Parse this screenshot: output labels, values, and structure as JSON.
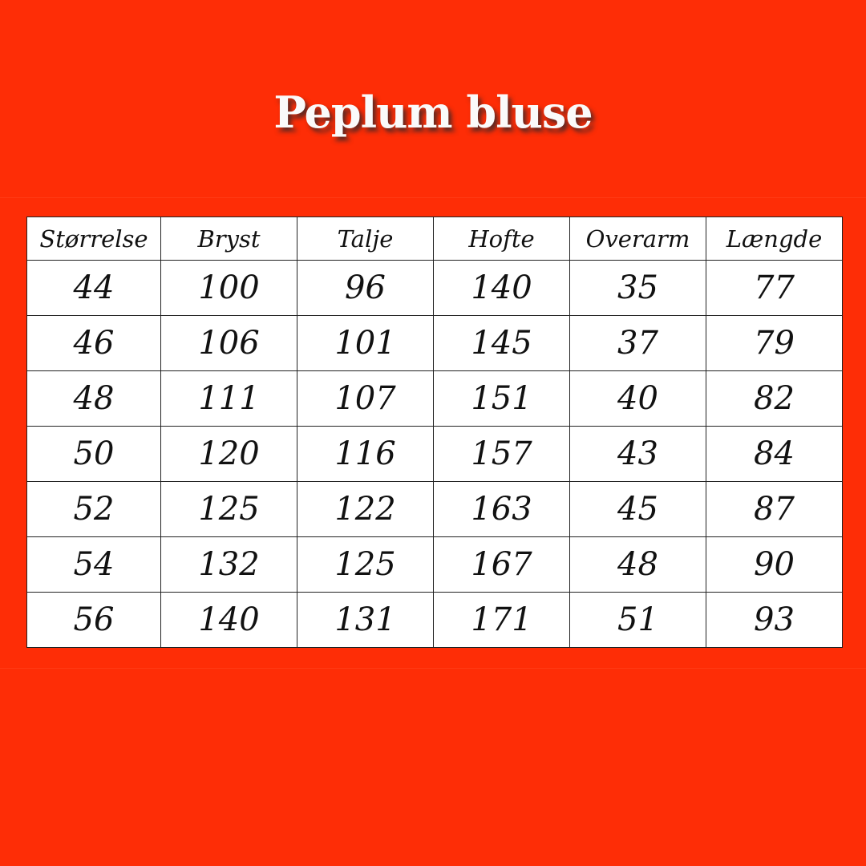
{
  "title": "Peplum bluse",
  "colors": {
    "background": "#fe2d06",
    "table": "#ffffff"
  },
  "table": {
    "headers": [
      "Størrelse",
      "Bryst",
      "Talje",
      "Hofte",
      "Overarm",
      "Længde"
    ],
    "rows": [
      [
        "44",
        "100",
        "96",
        "140",
        "35",
        "77"
      ],
      [
        "46",
        "106",
        "101",
        "145",
        "37",
        "79"
      ],
      [
        "48",
        "111",
        "107",
        "151",
        "40",
        "82"
      ],
      [
        "50",
        "120",
        "116",
        "157",
        "43",
        "84"
      ],
      [
        "52",
        "125",
        "122",
        "163",
        "45",
        "87"
      ],
      [
        "54",
        "132",
        "125",
        "167",
        "48",
        "90"
      ],
      [
        "56",
        "140",
        "131",
        "171",
        "51",
        "93"
      ]
    ]
  }
}
